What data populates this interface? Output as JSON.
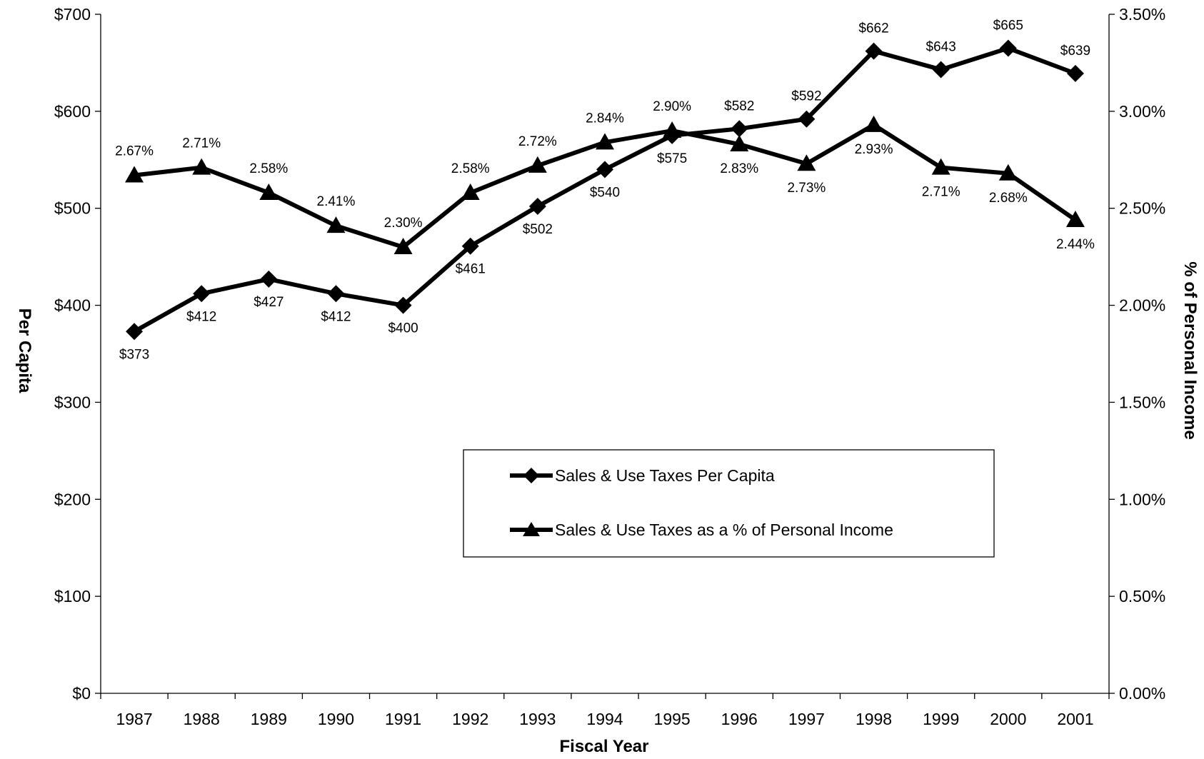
{
  "chart_data": {
    "type": "line",
    "xlabel": "Fiscal Year",
    "ylabel": "Per Capita",
    "y2label": "% of Personal Income",
    "categories": [
      "1987",
      "1988",
      "1989",
      "1990",
      "1991",
      "1992",
      "1993",
      "1994",
      "1995",
      "1996",
      "1997",
      "1998",
      "1999",
      "2000",
      "2001"
    ],
    "ylim": [
      0,
      700
    ],
    "y2lim": [
      0,
      3.5
    ],
    "y_ticks": [
      "$0",
      "$100",
      "$200",
      "$300",
      "$400",
      "$500",
      "$600",
      "$700"
    ],
    "y2_ticks": [
      "0.00%",
      "0.50%",
      "1.00%",
      "1.50%",
      "2.00%",
      "2.50%",
      "3.00%",
      "3.50%"
    ],
    "grid": false,
    "legend_position": "center-right, inside plot area",
    "series": [
      {
        "name": "Sales & Use Taxes Per Capita",
        "axis": "left",
        "marker": "diamond",
        "values": [
          373,
          412,
          427,
          412,
          400,
          461,
          502,
          540,
          575,
          582,
          592,
          662,
          643,
          665,
          639
        ],
        "labels": [
          "$373",
          "$412",
          "$427",
          "$412",
          "$400",
          "$461",
          "$502",
          "$540",
          "$575",
          "$582",
          "$592",
          "$662",
          "$643",
          "$665",
          "$639"
        ]
      },
      {
        "name": "Sales & Use Taxes as a % of Personal Income",
        "axis": "right",
        "marker": "triangle",
        "values": [
          2.67,
          2.71,
          2.58,
          2.41,
          2.3,
          2.58,
          2.72,
          2.84,
          2.9,
          2.83,
          2.73,
          2.93,
          2.71,
          2.68,
          2.44
        ],
        "labels": [
          "2.67%",
          "2.71%",
          "2.58%",
          "2.41%",
          "2.30%",
          "2.58%",
          "2.72%",
          "2.84%",
          "2.90%",
          "2.83%",
          "2.73%",
          "2.93%",
          "2.71%",
          "2.68%",
          "2.44%"
        ]
      }
    ],
    "colors": {
      "line": "#000000",
      "background": "#ffffff"
    }
  }
}
